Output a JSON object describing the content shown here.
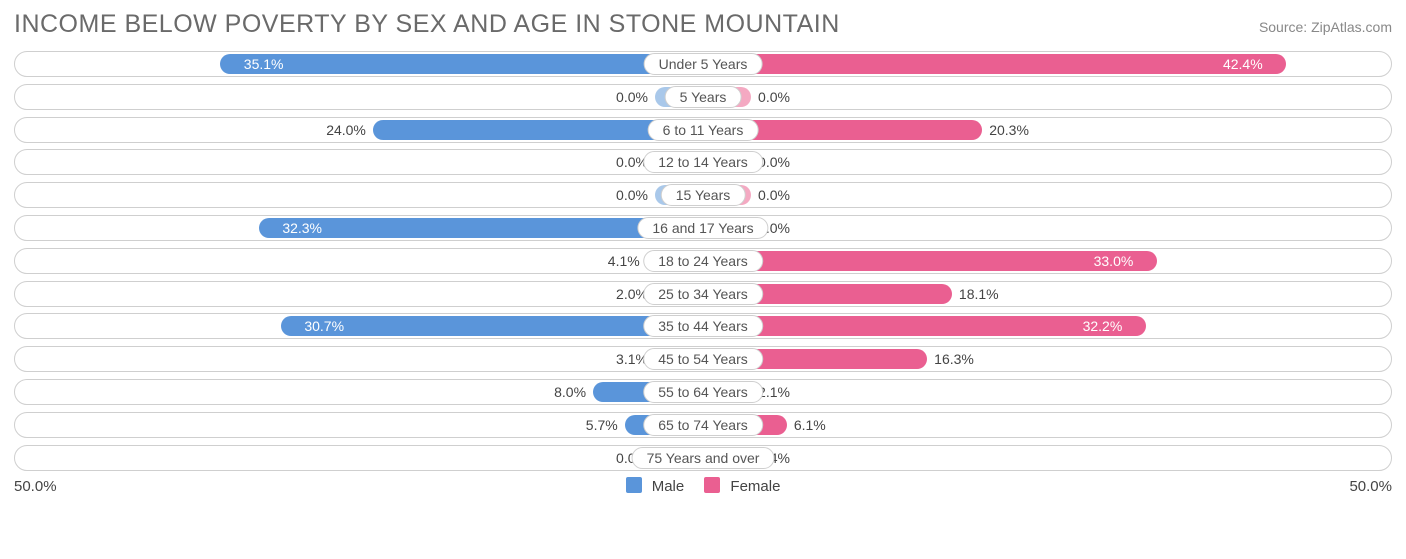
{
  "title": "INCOME BELOW POVERTY BY SEX AND AGE IN STONE MOUNTAIN",
  "source": "Source: ZipAtlas.com",
  "axis_max_label": "50.0%",
  "axis_max": 50.0,
  "min_bar_pct": 7.0,
  "colors": {
    "male": "#5a95da",
    "male_light": "#a9c8ea",
    "female": "#ea5f91",
    "female_light": "#f4a9c2",
    "row_border": "#cfcfcf",
    "text": "#444444",
    "title": "#6a6a6a",
    "bg": "#ffffff"
  },
  "legend": {
    "male": "Male",
    "female": "Female"
  },
  "rows": [
    {
      "label": "Under 5 Years",
      "male": 35.1,
      "female": 42.4
    },
    {
      "label": "5 Years",
      "male": 0.0,
      "female": 0.0
    },
    {
      "label": "6 to 11 Years",
      "male": 24.0,
      "female": 20.3
    },
    {
      "label": "12 to 14 Years",
      "male": 0.0,
      "female": 0.0
    },
    {
      "label": "15 Years",
      "male": 0.0,
      "female": 0.0
    },
    {
      "label": "16 and 17 Years",
      "male": 32.3,
      "female": 0.0
    },
    {
      "label": "18 to 24 Years",
      "male": 4.1,
      "female": 33.0
    },
    {
      "label": "25 to 34 Years",
      "male": 2.0,
      "female": 18.1
    },
    {
      "label": "35 to 44 Years",
      "male": 30.7,
      "female": 32.2
    },
    {
      "label": "45 to 54 Years",
      "male": 3.1,
      "female": 16.3
    },
    {
      "label": "55 to 64 Years",
      "male": 8.0,
      "female": 2.1
    },
    {
      "label": "65 to 74 Years",
      "male": 5.7,
      "female": 6.1
    },
    {
      "label": "75 Years and over",
      "male": 0.0,
      "female": 2.4
    }
  ]
}
